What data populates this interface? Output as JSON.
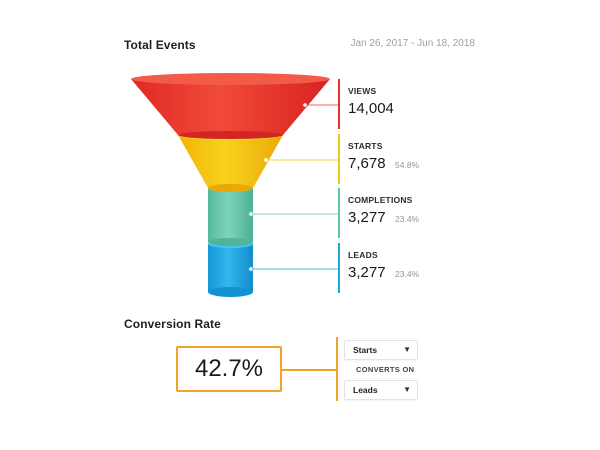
{
  "header": {
    "title": "Total Events",
    "date_range": "Jan 26, 2017 - Jun 18, 2018"
  },
  "funnel": {
    "stages": [
      {
        "label": "VIEWS",
        "value": "14,004",
        "percent": "",
        "color": "#e8312a"
      },
      {
        "label": "STARTS",
        "value": "7,678",
        "percent": "54.8%",
        "color": "#f3c410"
      },
      {
        "label": "COMPLETIONS",
        "value": "3,277",
        "percent": "23.4%",
        "color": "#5fc3a8"
      },
      {
        "label": "LEADS",
        "value": "3,277",
        "percent": "23.4%",
        "color": "#1ea7e0"
      }
    ]
  },
  "conversion": {
    "title": "Conversion Rate",
    "rate": "42.7%",
    "accent_color": "#f0a32a",
    "from_select": "Starts",
    "converts_on_label": "CONVERTS ON",
    "to_select": "Leads"
  },
  "icons": {
    "dropdown": "chevron-down-icon"
  }
}
